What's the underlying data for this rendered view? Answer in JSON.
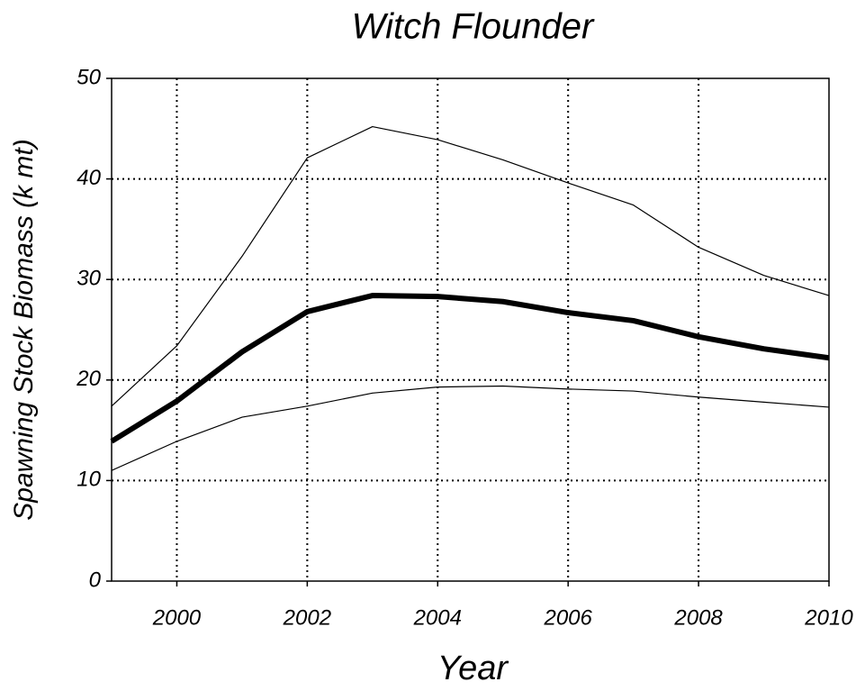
{
  "chart_data": {
    "type": "line",
    "title": "Witch Flounder",
    "xlabel": "Year",
    "ylabel": "Spawning Stock Biomass (k mt)",
    "x": [
      1999,
      2000,
      2001,
      2002,
      2003,
      2004,
      2005,
      2006,
      2007,
      2008,
      2009,
      2010
    ],
    "series": [
      {
        "color": "#000000",
        "linewidth": 1.2,
        "values": [
          17.4,
          23.4,
          32.3,
          42.1,
          45.2,
          43.9,
          41.9,
          39.6,
          37.4,
          33.2,
          30.4,
          28.4
        ]
      },
      {
        "color": "#000000",
        "linewidth": 6,
        "values": [
          13.9,
          17.9,
          22.8,
          26.8,
          28.4,
          28.3,
          27.8,
          26.7,
          25.9,
          24.3,
          23.1,
          22.2
        ]
      },
      {
        "color": "#000000",
        "linewidth": 1.2,
        "values": [
          11.0,
          13.9,
          16.3,
          17.4,
          18.7,
          19.3,
          19.4,
          19.1,
          18.9,
          18.3,
          17.8,
          17.3
        ]
      }
    ],
    "xlim": [
      1999,
      2010
    ],
    "xticks": [
      2000,
      2002,
      2004,
      2006,
      2008,
      2010
    ],
    "ylim": [
      0,
      50
    ],
    "yticks": [
      0,
      10,
      20,
      30,
      40,
      50
    ],
    "grid": true
  }
}
